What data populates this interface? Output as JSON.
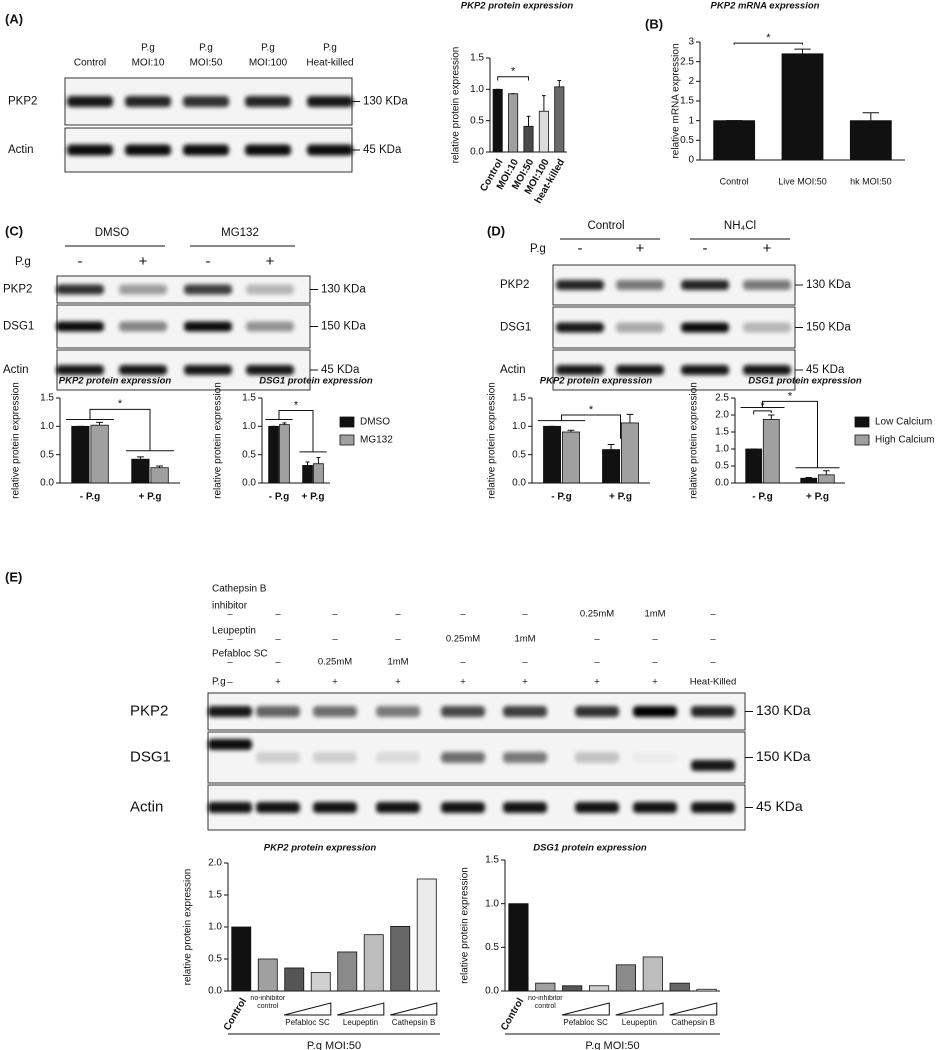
{
  "panels": [
    "(A)",
    "(B)",
    "(C)",
    "(D)",
    "(E)"
  ],
  "blots": [
    {
      "lanes": [
        [
          "Control"
        ],
        [
          "P.g",
          "MOI:10"
        ],
        [
          "P.g",
          "MOI:50"
        ],
        [
          "P.g",
          "MOI:100"
        ],
        [
          "P.g",
          "Heat-killed"
        ]
      ],
      "rows": [
        {
          "name": "PKP2",
          "marker": "130 KDa"
        },
        {
          "name": "Actin",
          "marker": "45 KDa"
        }
      ]
    },
    {
      "groups": [
        "DMSO",
        "MG132"
      ],
      "treatment": "P.g",
      "lanes": [
        "-",
        "+",
        "-",
        "+"
      ],
      "rows": [
        {
          "name": "PKP2",
          "marker": "130 KDa"
        },
        {
          "name": "DSG1",
          "marker": "150 KDa"
        },
        {
          "name": "Actin",
          "marker": "45 KDa"
        }
      ]
    },
    {
      "groups": [
        "Control",
        "NH₄Cl"
      ],
      "treatment": "P.g",
      "lanes": [
        "-",
        "+",
        "-",
        "+"
      ],
      "rows": [
        {
          "name": "PKP2",
          "marker": "130 KDa"
        },
        {
          "name": "DSG1",
          "marker": "150 KDa"
        },
        {
          "name": "Actin",
          "marker": "45 KDa"
        }
      ]
    },
    {
      "conditions": [
        {
          "name": [
            "Cathepsin B",
            "inhibitor"
          ],
          "values": [
            "–",
            "–",
            "–",
            "–",
            "–",
            "–",
            "0.25mM",
            "1mM",
            "–"
          ]
        },
        {
          "name": [
            "Leupeptin"
          ],
          "values": [
            "–",
            "–",
            "–",
            "–",
            "0.25mM",
            "1mM",
            "–",
            "–",
            "–"
          ]
        },
        {
          "name": [
            "Pefabloc SC"
          ],
          "values": [
            "–",
            "–",
            "0.25mM",
            "1mM",
            "–",
            "–",
            "–",
            "–",
            "–"
          ]
        },
        {
          "name": [
            "P.g"
          ],
          "values": [
            "–",
            "+",
            "+",
            "+",
            "+",
            "+",
            "+",
            "+",
            "Heat-Killed"
          ]
        }
      ],
      "rows": [
        {
          "name": "PKP2",
          "marker": "130 KDa"
        },
        {
          "name": "DSG1",
          "marker": "150 KDa"
        },
        {
          "name": "Actin",
          "marker": "45 KDa"
        }
      ]
    }
  ],
  "chart_data": [
    {
      "type": "bar",
      "title": "PKP2 protein expression",
      "ylabel": "relative protein expression",
      "categories": [
        "Control",
        "MOI:10",
        "MOI:50",
        "MOI:100",
        "heat-killed"
      ],
      "values": [
        1,
        0.93,
        0.41,
        0.65,
        1.04
      ],
      "errors": [
        0,
        0,
        0.16,
        0.25,
        0.1
      ],
      "colors": [
        "#111111",
        "#a0a0a0",
        "#4a4a4a",
        "#dcdcdc",
        "#6a6a6a"
      ],
      "ylim": [
        0,
        1.5
      ],
      "yticks": [
        {
          "value": 0,
          "label": "0.0"
        },
        {
          "value": 0.5,
          "label": "0.5"
        },
        {
          "value": 1,
          "label": "1.0"
        },
        {
          "value": 1.5,
          "label": "1.5"
        }
      ],
      "annotations": [
        "*"
      ]
    },
    {
      "type": "bar",
      "title": "PKP2 mRNA expression",
      "ylabel": "relative mRNA expression",
      "categories": [
        "Control",
        "Live MOI:50",
        "hk MOI:50"
      ],
      "values": [
        1,
        2.7,
        1.0
      ],
      "errors": [
        0,
        0.12,
        0.2
      ],
      "color": "#111111",
      "ylim": [
        0,
        3
      ],
      "yticks": [
        0,
        0.5,
        1,
        1.5,
        2,
        2.5,
        3
      ],
      "annotations": [
        "*"
      ]
    },
    {
      "type": "bar",
      "title": "PKP2 protein expression",
      "ylabel": "relative protein expression",
      "categories": [
        "- P.g",
        "+ P.g"
      ],
      "series": [
        {
          "color": "#111111",
          "values": [
            1,
            0.42
          ],
          "errors": [
            0,
            0.04
          ]
        },
        {
          "color": "#a0a0a0",
          "values": [
            1.02,
            0.27
          ],
          "errors": [
            0.05,
            0.03
          ]
        }
      ],
      "ylim": [
        0,
        1.5
      ],
      "yticks": [
        {
          "value": 0,
          "label": "0.0"
        },
        {
          "value": 0.5,
          "label": "0.5"
        },
        {
          "value": 1,
          "label": "1.0"
        },
        {
          "value": 1.5,
          "label": "1.5"
        }
      ],
      "annotations": [
        "*"
      ]
    },
    {
      "type": "bar",
      "title": "DSG1 protein expression",
      "ylabel": "relative protein expression",
      "categories": [
        "- P.g",
        "+ P.g"
      ],
      "series": [
        {
          "name": "DMSO",
          "color": "#111111",
          "values": [
            1,
            0.31
          ],
          "errors": [
            0,
            0.06
          ]
        },
        {
          "name": "MG132",
          "color": "#a0a0a0",
          "values": [
            1.03,
            0.34
          ],
          "errors": [
            0.03,
            0.11
          ]
        }
      ],
      "ylim": [
        0,
        1.5
      ],
      "yticks": [
        {
          "value": 0,
          "label": "0.0"
        },
        {
          "value": 0.5,
          "label": "0.5"
        },
        {
          "value": 1,
          "label": "1.0"
        },
        {
          "value": 1.5,
          "label": "1.5"
        }
      ],
      "legend": "right",
      "annotations": [
        "*"
      ]
    },
    {
      "type": "bar",
      "title": "PKP2 protein expression",
      "ylabel": "relative protein expression",
      "categories": [
        "- P.g",
        "+ P.g"
      ],
      "series": [
        {
          "color": "#111111",
          "values": [
            1,
            0.59
          ],
          "errors": [
            0,
            0.09
          ]
        },
        {
          "color": "#a0a0a0",
          "values": [
            0.9,
            1.06
          ],
          "errors": [
            0.03,
            0.15
          ]
        }
      ],
      "ylim": [
        0,
        1.5
      ],
      "yticks": [
        {
          "value": 0,
          "label": "0.0"
        },
        {
          "value": 0.5,
          "label": "0.5"
        },
        {
          "value": 1,
          "label": "1.0"
        },
        {
          "value": 1.5,
          "label": "1.5"
        }
      ],
      "annotations": [
        "*"
      ]
    },
    {
      "type": "bar",
      "title": "DSG1 protein expression",
      "ylabel": "relative protein expression",
      "categories": [
        "- P.g",
        "+ P.g"
      ],
      "series": [
        {
          "name": "Low Calcium",
          "color": "#111111",
          "values": [
            1,
            0.14
          ],
          "errors": [
            0,
            0.02
          ]
        },
        {
          "name": "High Calcium",
          "color": "#a0a0a0",
          "values": [
            1.87,
            0.24
          ],
          "errors": [
            0.13,
            0.12
          ]
        }
      ],
      "ylim": [
        0,
        2.5
      ],
      "yticks": [
        {
          "value": 0,
          "label": "0.0"
        },
        {
          "value": 0.5,
          "label": "0.5"
        },
        {
          "value": 1,
          "label": "1.0"
        },
        {
          "value": 1.5,
          "label": "1.5"
        },
        {
          "value": 2,
          "label": "2.0"
        },
        {
          "value": 2.5,
          "label": "2.5"
        }
      ],
      "legend": "right",
      "annotations": [
        "*",
        "*"
      ]
    },
    {
      "type": "bar",
      "title": "PKP2 protein expression",
      "ylabel": "relative protein expression",
      "categories": [
        "Control",
        "no-inhibitor control",
        null,
        null,
        null,
        null,
        null,
        null
      ],
      "groups": [
        "Pefabloc SC",
        "Leupeptin",
        "Cathepsin B"
      ],
      "xlabel": "P.g MOI:50",
      "values": [
        1.0,
        0.5,
        0.36,
        0.29,
        0.61,
        0.88,
        1.01,
        1.75
      ],
      "colors": [
        "#111111",
        "#a0a0a0",
        "#555555",
        "#d0d0d0",
        "#8a8a8a",
        "#bdbdbd",
        "#666666",
        "#ebebeb"
      ],
      "ylim": [
        0,
        2
      ],
      "yticks": [
        {
          "value": 0,
          "label": "0.0"
        },
        {
          "value": 0.5,
          "label": "0.5"
        },
        {
          "value": 1,
          "label": "1.0"
        },
        {
          "value": 1.5,
          "label": "1.5"
        },
        {
          "value": 2,
          "label": "2.0"
        }
      ]
    },
    {
      "type": "bar",
      "title": "DSG1 protein expression",
      "ylabel": "relative protein expression",
      "categories": [
        "Control",
        "no-inhibitor control",
        null,
        null,
        null,
        null,
        null,
        null
      ],
      "groups": [
        "Pefabloc SC",
        "Leupeptin",
        "Cathepsin B"
      ],
      "xlabel": "P.g MOI:50",
      "values": [
        1.0,
        0.09,
        0.06,
        0.06,
        0.3,
        0.39,
        0.09,
        0.02
      ],
      "colors": [
        "#111111",
        "#a0a0a0",
        "#555555",
        "#d0d0d0",
        "#8a8a8a",
        "#bdbdbd",
        "#666666",
        "#ebebeb"
      ],
      "ylim": [
        0,
        1.5
      ],
      "yticks": [
        {
          "value": 0,
          "label": "0.0"
        },
        {
          "value": 0.5,
          "label": "0.5"
        },
        {
          "value": 1,
          "label": "1.0"
        },
        {
          "value": 1.5,
          "label": "1.5"
        }
      ]
    }
  ]
}
